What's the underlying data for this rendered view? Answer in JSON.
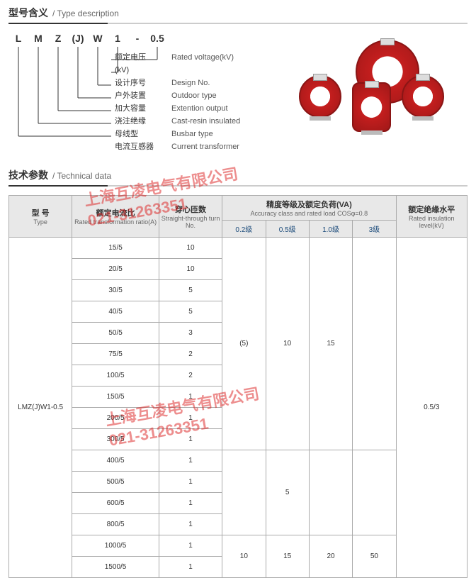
{
  "sections": {
    "type_desc": {
      "zh": "型号含义",
      "en": "/ Type description"
    },
    "tech_data": {
      "zh": "技术参数",
      "en": "/ Technical data"
    }
  },
  "model_code": [
    "L",
    "M",
    "Z",
    "(J)",
    "W",
    "1",
    "-",
    "0.5"
  ],
  "desc_rows": [
    {
      "zh": "额定电压(kV)",
      "en": "Rated voltage(kV)"
    },
    {
      "zh": "设计序号",
      "en": "Design No."
    },
    {
      "zh": "户外装置",
      "en": "Outdoor type"
    },
    {
      "zh": "加大容量",
      "en": "Extention output"
    },
    {
      "zh": "浇注绝缘",
      "en": "Cast-resin insulated"
    },
    {
      "zh": "母线型",
      "en": "Busbar type"
    },
    {
      "zh": "电流互感器",
      "en": "Current transformer"
    }
  ],
  "tech_headers": {
    "type": {
      "zh": "型 号",
      "en": "Type"
    },
    "ratio": {
      "zh": "额定电流比",
      "en": "Rated transformation ratio(A)"
    },
    "turns": {
      "zh": "穿心匝数",
      "en": "Straight-through turn No."
    },
    "accuracy": {
      "zh": "精度等级及额定负荷(VA)",
      "en": "Accuracy class and rated load COSφ=0.8"
    },
    "insulation": {
      "zh": "额定绝缘水平",
      "en": "Rated insulation level(kV)"
    },
    "sub": [
      "0.2级",
      "0.5级",
      "1.0级",
      "3级"
    ]
  },
  "tech_type": "LMZ(J)W1-0.5",
  "tech_insulation": "0.5/3",
  "tech_rows": [
    {
      "ratio": "15/5",
      "turns": "10"
    },
    {
      "ratio": "20/5",
      "turns": "10"
    },
    {
      "ratio": "30/5",
      "turns": "5"
    },
    {
      "ratio": "40/5",
      "turns": "5"
    },
    {
      "ratio": "50/5",
      "turns": "3"
    },
    {
      "ratio": "75/5",
      "turns": "2"
    },
    {
      "ratio": "100/5",
      "turns": "2"
    },
    {
      "ratio": "150/5",
      "turns": "1"
    },
    {
      "ratio": "200/5",
      "turns": "1"
    },
    {
      "ratio": "300/5",
      "turns": "1"
    },
    {
      "ratio": "400/5",
      "turns": "1"
    },
    {
      "ratio": "500/5",
      "turns": "1"
    },
    {
      "ratio": "600/5",
      "turns": "1"
    },
    {
      "ratio": "800/5",
      "turns": "1"
    },
    {
      "ratio": "1000/5",
      "turns": "1"
    },
    {
      "ratio": "1500/5",
      "turns": "1"
    }
  ],
  "accuracy_blocks": [
    {
      "rowspan": 10,
      "c02": "(5)",
      "c05": "10",
      "c10": "15",
      "c3": ""
    },
    {
      "rowspan": 4,
      "c02": "",
      "c05": "5",
      "c10": "",
      "c3": ""
    },
    {
      "rowspan": 2,
      "c02": "10",
      "c05": "15",
      "c10": "20",
      "c3": "50"
    }
  ],
  "watermark": {
    "line1": "上海互凌电气有限公司",
    "line2": "021-31263351"
  },
  "colors": {
    "ring_main": "#c41e1e",
    "ring_dark": "#8a1515",
    "header_bg": "#e8e8e8",
    "header_text": "#1a4a7a",
    "border": "#aaaaaa",
    "watermark": "rgba(220,30,30,0.5)"
  }
}
